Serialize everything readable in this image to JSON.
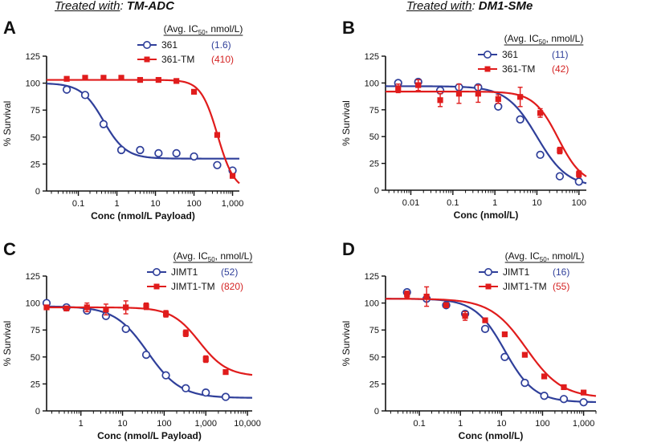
{
  "titles": {
    "left": {
      "prefix": "Treated with",
      "colon": ":",
      "drug": "TM-ADC"
    },
    "right": {
      "prefix": "Treated with",
      "colon": ":",
      "drug": "DM1-SMe"
    }
  },
  "colors": {
    "blue": "#2f3f9a",
    "red": "#e01c1c",
    "blue_text": "#2f3f9a",
    "red_text": "#d42323"
  },
  "chart_data": [
    {
      "id": "A",
      "type": "scatter",
      "letter": "A",
      "ylabel": "% Survival",
      "xlabel": "Conc (nmol/L Payload)",
      "xscale": "log",
      "xlim": [
        0.015,
        1500
      ],
      "ylim": [
        0,
        125
      ],
      "xticks": [
        0.1,
        1,
        10,
        100,
        1000
      ],
      "xtick_labels": [
        "0.1",
        "1",
        "10",
        "100",
        "1,000"
      ],
      "yticks": [
        0,
        25,
        50,
        75,
        100,
        125
      ],
      "ytick_labels": [
        "0",
        "25",
        "50",
        "75",
        "100",
        "125"
      ],
      "legend_header": {
        "pre": "(Avg. IC",
        "sub": "50",
        "post": ", nmol/L)"
      },
      "series": [
        {
          "name": "361",
          "ic50": "(1.6)",
          "color": "blue",
          "marker": "circle",
          "x": [
            0.05,
            0.15,
            0.45,
            1.3,
            4,
            12,
            35,
            100,
            400,
            1000
          ],
          "y": [
            94,
            89,
            62,
            38,
            38,
            35,
            35,
            32,
            24,
            19
          ],
          "fit": {
            "top": 100,
            "bottom": 30,
            "ec50": 0.45,
            "hill": 1.5
          }
        },
        {
          "name": "361-TM",
          "ic50": "(410)",
          "color": "red",
          "marker": "square",
          "x": [
            0.05,
            0.15,
            0.45,
            1.3,
            4,
            12,
            35,
            100,
            400,
            1000
          ],
          "y": [
            104,
            105,
            105,
            105,
            103,
            103,
            102,
            92,
            52,
            14
          ],
          "fit": {
            "top": 103,
            "bottom": 0,
            "ec50": 410,
            "hill": 2.0
          }
        }
      ]
    },
    {
      "id": "B",
      "type": "scatter",
      "letter": "B",
      "ylabel": "% Survival",
      "xlabel": "Conc (nmol/L)",
      "xscale": "log",
      "xlim": [
        0.0025,
        150
      ],
      "ylim": [
        0,
        125
      ],
      "xticks": [
        0.01,
        0.1,
        1,
        10,
        100
      ],
      "xtick_labels": [
        "0.01",
        "0.1",
        "1",
        "10",
        "100"
      ],
      "yticks": [
        0,
        25,
        50,
        75,
        100,
        125
      ],
      "ytick_labels": [
        "0",
        "25",
        "50",
        "75",
        "100",
        "125"
      ],
      "legend_header": {
        "pre": "(Avg. IC",
        "sub": "50",
        "post": ", nmol/L)"
      },
      "series": [
        {
          "name": "361",
          "ic50": "(11)",
          "color": "blue",
          "marker": "circle",
          "x": [
            0.005,
            0.015,
            0.05,
            0.14,
            0.4,
            1.2,
            4,
            12,
            35,
            100
          ],
          "y": [
            100,
            101,
            93,
            96,
            96,
            78,
            66,
            33,
            13,
            8
          ],
          "fit": {
            "top": 97,
            "bottom": 3,
            "ec50": 10,
            "hill": 1.2
          }
        },
        {
          "name": "361-TM",
          "ic50": "(42)",
          "color": "red",
          "marker": "square",
          "x": [
            0.005,
            0.015,
            0.05,
            0.14,
            0.4,
            1.2,
            4,
            12,
            35,
            100
          ],
          "y": [
            95,
            98,
            84,
            90,
            90,
            85,
            87,
            72,
            37,
            15
          ],
          "err": [
            4,
            5,
            6,
            9,
            8,
            4,
            9,
            4,
            3,
            3
          ],
          "fit": {
            "top": 92,
            "bottom": 5,
            "ec50": 32,
            "hill": 1.5
          }
        }
      ]
    },
    {
      "id": "C",
      "type": "scatter",
      "letter": "C",
      "ylabel": "% Survival",
      "xlabel": "Conc (nmol/L Payload)",
      "xscale": "log",
      "xlim": [
        0.15,
        13000
      ],
      "ylim": [
        0,
        125
      ],
      "xticks": [
        1,
        10,
        100,
        1000,
        10000
      ],
      "xtick_labels": [
        "1",
        "10",
        "100",
        "1,000",
        "10,000"
      ],
      "yticks": [
        0,
        25,
        50,
        75,
        100,
        125
      ],
      "ytick_labels": [
        "0",
        "25",
        "50",
        "75",
        "100",
        "125"
      ],
      "legend_header": {
        "pre": "(Avg. IC",
        "sub": "50",
        "post": ", nmol/L)"
      },
      "series": [
        {
          "name": "JIMT1",
          "ic50": "(52)",
          "color": "blue",
          "marker": "circle",
          "x": [
            0.15,
            0.45,
            1.4,
            4,
            12,
            37,
            110,
            330,
            1000,
            3000
          ],
          "y": [
            100,
            96,
            93,
            88,
            76,
            52,
            33,
            21,
            17,
            13
          ],
          "fit": {
            "top": 97,
            "bottom": 12,
            "ec50": 40,
            "hill": 1.1
          }
        },
        {
          "name": "JIMT1-TM",
          "ic50": "(820)",
          "color": "red",
          "marker": "square",
          "x": [
            0.15,
            0.45,
            1.4,
            4,
            12,
            37,
            110,
            330,
            1000,
            3000
          ],
          "y": [
            96,
            95,
            96,
            94,
            96,
            97,
            90,
            72,
            48,
            36
          ],
          "err": [
            2,
            2,
            4,
            5,
            6,
            3,
            3,
            3,
            3,
            2
          ],
          "fit": {
            "top": 96,
            "bottom": 32,
            "ec50": 700,
            "hill": 1.3
          }
        }
      ]
    },
    {
      "id": "D",
      "type": "scatter",
      "letter": "D",
      "ylabel": "% Survival",
      "xlabel": "Conc (nmol/L)",
      "xscale": "log",
      "xlim": [
        0.015,
        2000
      ],
      "ylim": [
        0,
        125
      ],
      "xticks": [
        0.1,
        1,
        10,
        100,
        1000
      ],
      "xtick_labels": [
        "0.1",
        "1",
        "10",
        "100",
        "1,000"
      ],
      "yticks": [
        0,
        25,
        50,
        75,
        100,
        125
      ],
      "ytick_labels": [
        "0",
        "25",
        "50",
        "75",
        "100",
        "125"
      ],
      "legend_header": {
        "pre": "(Avg. IC",
        "sub": "50",
        "post": ", nmol/L)"
      },
      "series": [
        {
          "name": "JIMT1",
          "ic50": "(16)",
          "color": "blue",
          "marker": "circle",
          "x": [
            0.05,
            0.15,
            0.45,
            1.3,
            4,
            12,
            37,
            110,
            330,
            1000
          ],
          "y": [
            110,
            104,
            98,
            90,
            76,
            50,
            26,
            14,
            11,
            8
          ],
          "fit": {
            "top": 104,
            "bottom": 8,
            "ec50": 12,
            "hill": 1.2
          }
        },
        {
          "name": "JIMT1-TM",
          "ic50": "(55)",
          "color": "red",
          "marker": "square",
          "x": [
            0.05,
            0.15,
            0.45,
            1.3,
            4,
            12,
            37,
            110,
            330,
            1000
          ],
          "y": [
            108,
            106,
            98,
            88,
            84,
            71,
            52,
            32,
            22,
            17
          ],
          "err": [
            3,
            9,
            2,
            4,
            2,
            2,
            2,
            2,
            2,
            2
          ],
          "fit": {
            "top": 104,
            "bottom": 12,
            "ec50": 40,
            "hill": 1.0
          }
        }
      ]
    }
  ]
}
